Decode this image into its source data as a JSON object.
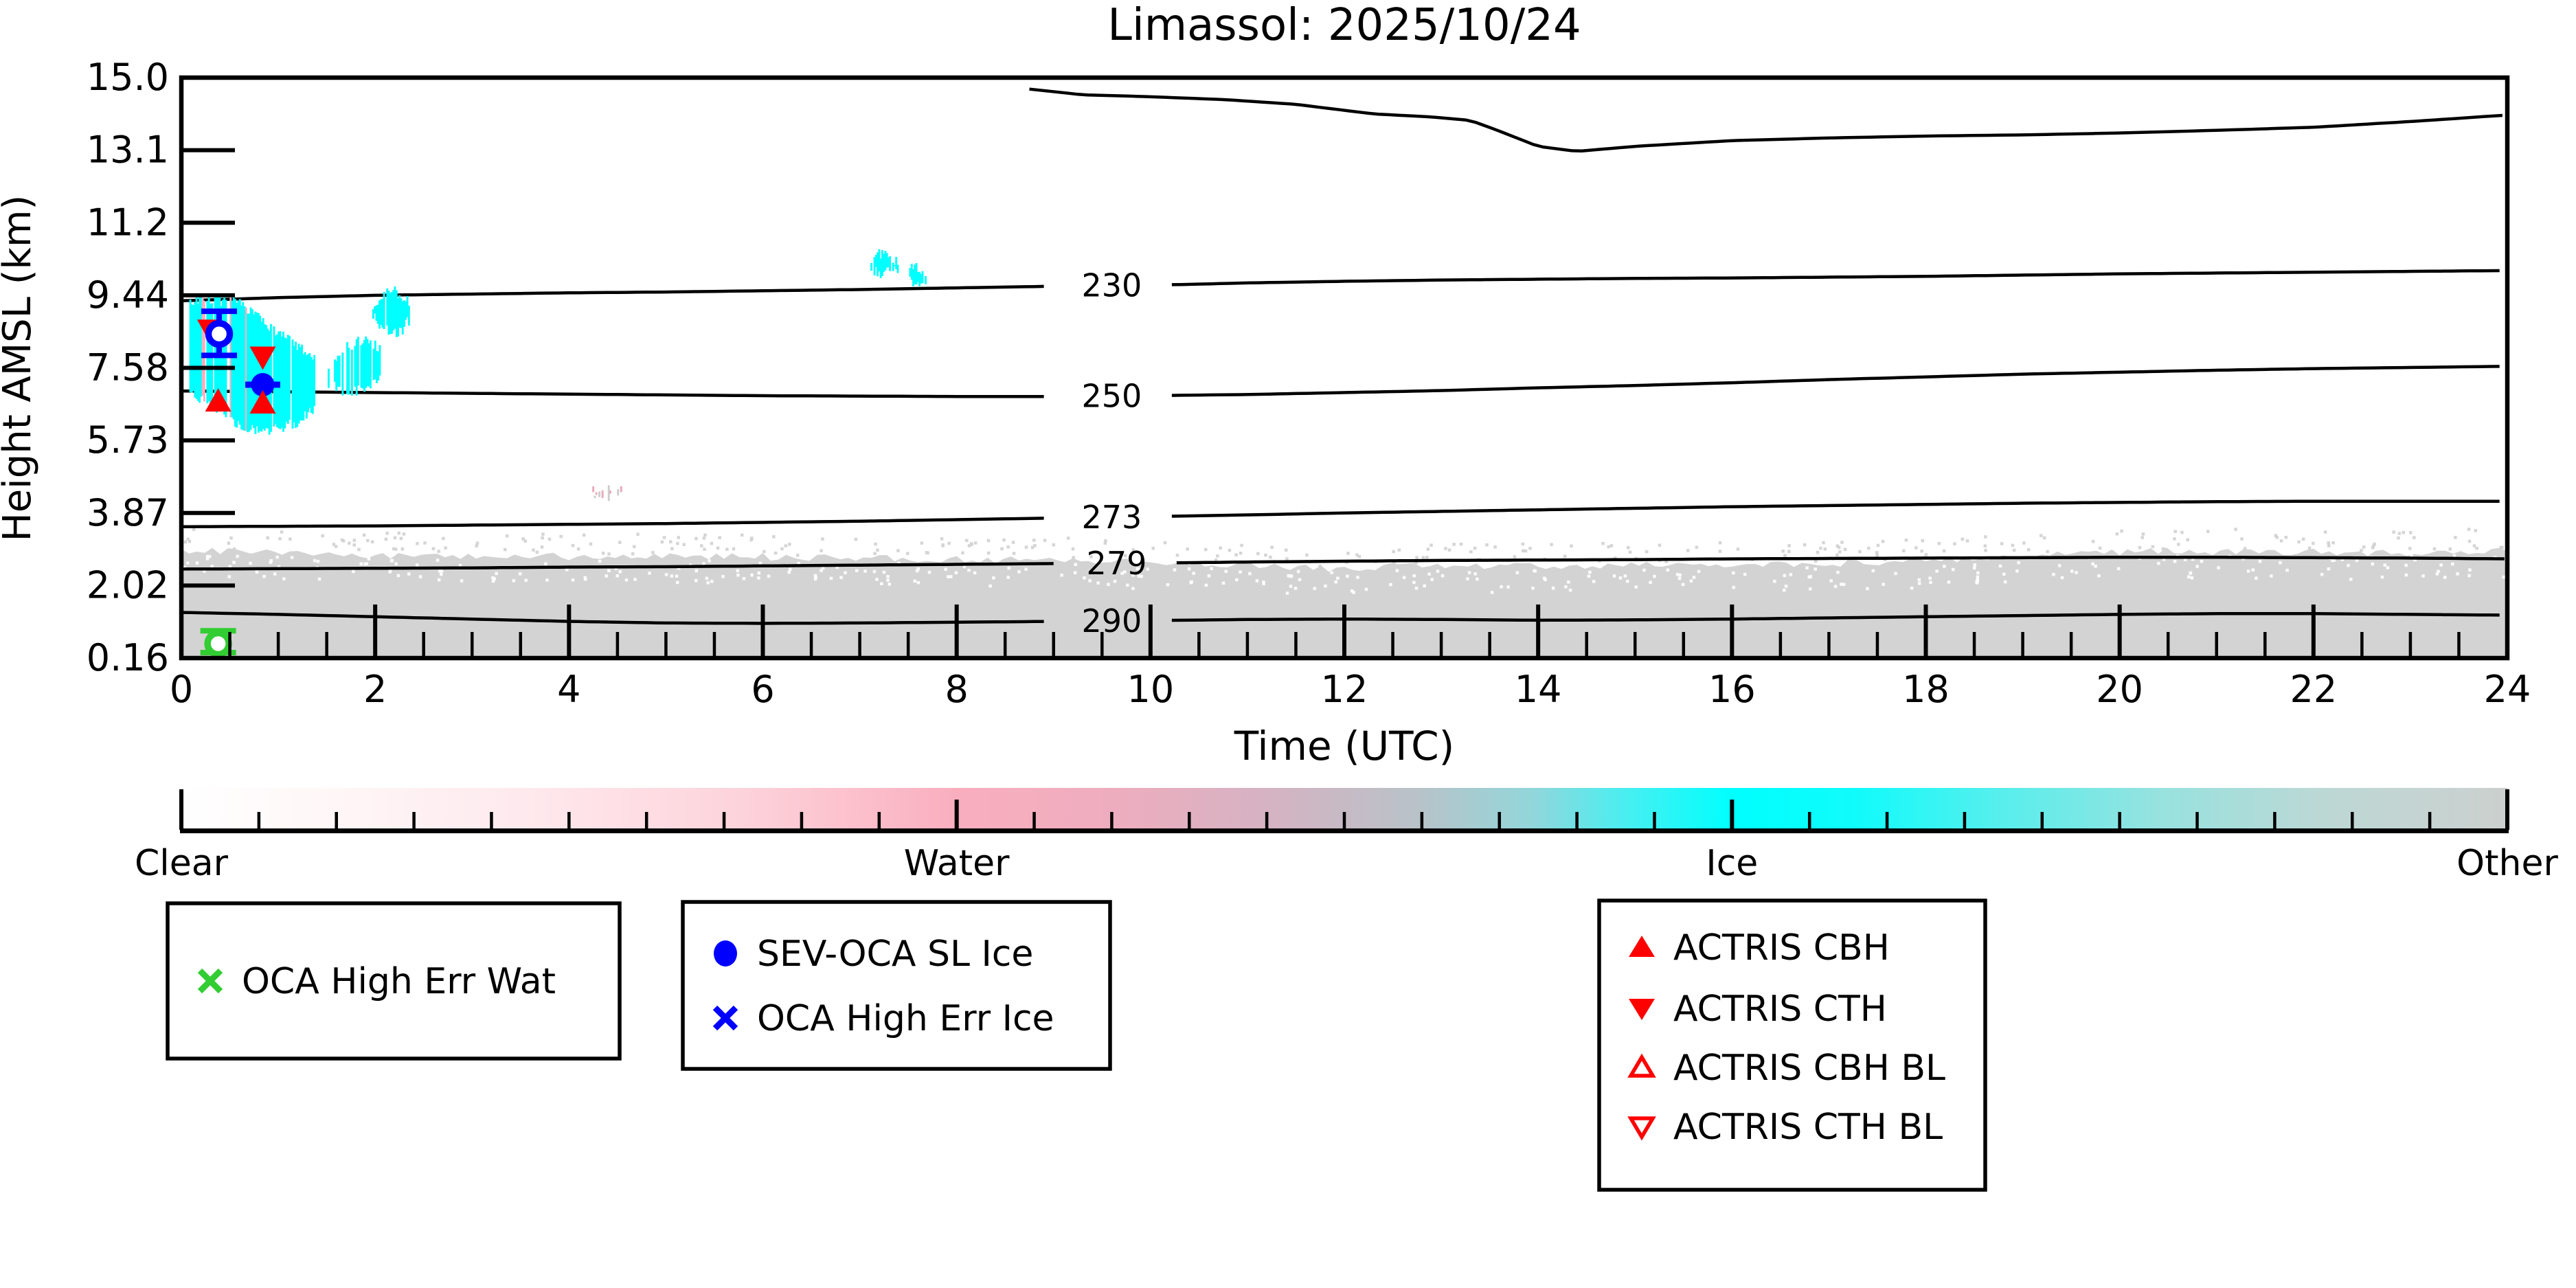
{
  "title": "Limassol: 2025/10/24",
  "chart_data": {
    "type": "heatmap",
    "title": "Limassol: 2025/10/24",
    "xlabel": "Time (UTC)",
    "ylabel": "Height AMSL (km)",
    "x_range": [
      0,
      24
    ],
    "x_tick_labels": [
      "0",
      "2",
      "4",
      "6",
      "8",
      "10",
      "12",
      "14",
      "16",
      "18",
      "20",
      "22",
      "24"
    ],
    "x_minor_tick_step": 0.5,
    "y_tick_labels": [
      "15.0",
      "13.1",
      "11.2",
      "9.44",
      "7.58",
      "5.73",
      "3.87",
      "2.02",
      "0.16"
    ],
    "y_tick_values": [
      15.0,
      13.1,
      11.2,
      9.44,
      7.58,
      5.73,
      3.87,
      2.02,
      0.16
    ],
    "grid": false,
    "isotherms": [
      {
        "label": "",
        "points": [
          [
            8.75,
            14.7
          ],
          [
            9.3,
            14.55
          ],
          [
            10,
            14.5
          ],
          [
            10.8,
            14.42
          ],
          [
            11.5,
            14.3
          ],
          [
            12.3,
            14.05
          ],
          [
            12.9,
            13.97
          ],
          [
            13.3,
            13.88
          ],
          [
            13.6,
            13.6
          ],
          [
            14.0,
            13.2
          ],
          [
            14.4,
            13.07
          ],
          [
            15,
            13.2
          ],
          [
            16,
            13.35
          ],
          [
            17,
            13.42
          ],
          [
            18,
            13.47
          ],
          [
            19,
            13.5
          ],
          [
            20,
            13.55
          ],
          [
            21,
            13.62
          ],
          [
            22,
            13.7
          ],
          [
            23,
            13.85
          ],
          [
            24,
            14.02
          ]
        ]
      },
      {
        "label": "230",
        "label_t": 9.6,
        "points": [
          [
            0,
            9.3
          ],
          [
            1,
            9.38
          ],
          [
            2,
            9.44
          ],
          [
            3,
            9.47
          ],
          [
            4,
            9.5
          ],
          [
            5,
            9.52
          ],
          [
            6,
            9.55
          ],
          [
            7,
            9.58
          ],
          [
            8,
            9.62
          ],
          [
            9,
            9.66
          ],
          [
            10.3,
            9.7
          ],
          [
            11,
            9.74
          ],
          [
            12,
            9.78
          ],
          [
            13,
            9.81
          ],
          [
            14,
            9.83
          ],
          [
            15,
            9.85
          ],
          [
            16,
            9.86
          ],
          [
            17,
            9.88
          ],
          [
            18,
            9.9
          ],
          [
            19,
            9.93
          ],
          [
            20,
            9.96
          ],
          [
            21,
            9.98
          ],
          [
            22,
            10.0
          ],
          [
            23,
            10.02
          ],
          [
            24,
            10.04
          ]
        ]
      },
      {
        "label": "250",
        "label_t": 9.6,
        "points": [
          [
            0,
            6.99
          ],
          [
            1,
            6.97
          ],
          [
            2,
            6.95
          ],
          [
            3,
            6.93
          ],
          [
            4,
            6.91
          ],
          [
            5,
            6.89
          ],
          [
            6,
            6.87
          ],
          [
            7,
            6.86
          ],
          [
            8,
            6.85
          ],
          [
            9,
            6.85
          ],
          [
            10.3,
            6.88
          ],
          [
            11,
            6.9
          ],
          [
            12,
            6.95
          ],
          [
            13,
            7.0
          ],
          [
            14,
            7.07
          ],
          [
            15,
            7.13
          ],
          [
            16,
            7.2
          ],
          [
            17,
            7.28
          ],
          [
            18,
            7.35
          ],
          [
            19,
            7.42
          ],
          [
            20,
            7.47
          ],
          [
            21,
            7.52
          ],
          [
            22,
            7.56
          ],
          [
            23,
            7.59
          ],
          [
            24,
            7.62
          ]
        ]
      },
      {
        "label": "273",
        "label_t": 9.6,
        "points": [
          [
            0,
            3.52
          ],
          [
            1,
            3.53
          ],
          [
            2,
            3.54
          ],
          [
            3,
            3.56
          ],
          [
            4,
            3.58
          ],
          [
            5,
            3.6
          ],
          [
            6,
            3.63
          ],
          [
            7,
            3.66
          ],
          [
            8,
            3.7
          ],
          [
            9,
            3.74
          ],
          [
            10.3,
            3.79
          ],
          [
            11,
            3.82
          ],
          [
            12,
            3.87
          ],
          [
            13,
            3.91
          ],
          [
            14,
            3.95
          ],
          [
            15,
            3.99
          ],
          [
            16,
            4.03
          ],
          [
            17,
            4.06
          ],
          [
            18,
            4.09
          ],
          [
            19,
            4.12
          ],
          [
            20,
            4.14
          ],
          [
            21,
            4.16
          ],
          [
            22,
            4.17
          ],
          [
            23,
            4.17
          ],
          [
            24,
            4.17
          ]
        ]
      },
      {
        "label": "279",
        "label_t": 9.65,
        "points": [
          [
            0,
            2.44
          ],
          [
            1,
            2.45
          ],
          [
            2,
            2.46
          ],
          [
            3,
            2.47
          ],
          [
            4,
            2.49
          ],
          [
            5,
            2.5
          ],
          [
            6,
            2.52
          ],
          [
            7,
            2.54
          ],
          [
            8,
            2.56
          ],
          [
            9,
            2.58
          ],
          [
            10.3,
            2.6
          ],
          [
            11,
            2.62
          ],
          [
            12,
            2.64
          ],
          [
            13,
            2.66
          ],
          [
            14,
            2.67
          ],
          [
            15,
            2.68
          ],
          [
            16,
            2.7
          ],
          [
            17,
            2.71
          ],
          [
            18,
            2.72
          ],
          [
            19,
            2.73
          ],
          [
            20,
            2.74
          ],
          [
            21,
            2.74
          ],
          [
            22,
            2.73
          ],
          [
            23,
            2.72
          ],
          [
            24,
            2.7
          ]
        ]
      },
      {
        "label": "290",
        "label_t": 9.6,
        "points": [
          [
            0,
            1.33
          ],
          [
            1,
            1.28
          ],
          [
            2,
            1.22
          ],
          [
            3,
            1.16
          ],
          [
            4,
            1.1
          ],
          [
            5,
            1.06
          ],
          [
            6,
            1.05
          ],
          [
            7,
            1.06
          ],
          [
            8,
            1.08
          ],
          [
            9,
            1.1
          ],
          [
            10.3,
            1.13
          ],
          [
            11,
            1.15
          ],
          [
            12,
            1.16
          ],
          [
            13,
            1.15
          ],
          [
            14,
            1.13
          ],
          [
            15,
            1.14
          ],
          [
            16,
            1.16
          ],
          [
            17,
            1.19
          ],
          [
            18,
            1.22
          ],
          [
            19,
            1.25
          ],
          [
            20,
            1.28
          ],
          [
            21,
            1.3
          ],
          [
            22,
            1.3
          ],
          [
            23,
            1.28
          ],
          [
            24,
            1.26
          ]
        ]
      }
    ],
    "surface_layer": {
      "color": "#d3d3d3",
      "top_km": [
        [
          0,
          2.9
        ],
        [
          1,
          2.85
        ],
        [
          2,
          2.8
        ],
        [
          3,
          2.77
        ],
        [
          4,
          2.76
        ],
        [
          5,
          2.76
        ],
        [
          6,
          2.75
        ],
        [
          7,
          2.72
        ],
        [
          8,
          2.68
        ],
        [
          9,
          2.66
        ],
        [
          10,
          2.62
        ],
        [
          11,
          2.56
        ],
        [
          11.7,
          2.45
        ],
        [
          12.5,
          2.52
        ],
        [
          13.5,
          2.5
        ],
        [
          14.5,
          2.52
        ],
        [
          15.5,
          2.55
        ],
        [
          16.5,
          2.58
        ],
        [
          17.5,
          2.6
        ],
        [
          18.5,
          2.68
        ],
        [
          19.5,
          2.82
        ],
        [
          20.5,
          2.9
        ],
        [
          21.5,
          2.88
        ],
        [
          22.5,
          2.85
        ],
        [
          23.2,
          2.88
        ],
        [
          24,
          2.9
        ]
      ]
    },
    "clouds": [
      {
        "phase": "ice",
        "color": "#00ffff",
        "seed": 7,
        "skip": 0.1,
        "pink": 0.07,
        "t0": 0.06,
        "t1": 1.38,
        "top": [
          [
            0.06,
            9.25
          ],
          [
            0.2,
            9.35
          ],
          [
            0.5,
            9.3
          ],
          [
            0.7,
            9.1
          ],
          [
            0.9,
            8.6
          ],
          [
            1.1,
            8.3
          ],
          [
            1.38,
            7.9
          ]
        ],
        "bot": [
          [
            0.06,
            7.0
          ],
          [
            0.2,
            6.8
          ],
          [
            0.4,
            6.5
          ],
          [
            0.6,
            6.1
          ],
          [
            0.8,
            6.0
          ],
          [
            1.0,
            6.0
          ],
          [
            1.2,
            6.2
          ],
          [
            1.38,
            6.6
          ]
        ]
      },
      {
        "phase": "ice",
        "color": "#00ffff",
        "seed": 13,
        "skip": 0.16,
        "pink": 0.03,
        "t0": 1.52,
        "t1": 2.08,
        "top": [
          [
            1.52,
            7.6
          ],
          [
            1.7,
            8.1
          ],
          [
            1.9,
            8.35
          ],
          [
            2.08,
            8.0
          ]
        ],
        "bot": [
          [
            1.52,
            7.2
          ],
          [
            1.7,
            6.95
          ],
          [
            1.9,
            7.0
          ],
          [
            2.08,
            7.3
          ]
        ]
      },
      {
        "phase": "ice",
        "color": "#00ffff",
        "seed": 21,
        "skip": 0.12,
        "pink": 0,
        "t0": 1.98,
        "t1": 2.38,
        "top": [
          [
            1.98,
            9.1
          ],
          [
            2.08,
            9.5
          ],
          [
            2.2,
            9.55
          ],
          [
            2.3,
            9.4
          ],
          [
            2.38,
            9.15
          ]
        ],
        "bot": [
          [
            1.98,
            8.9
          ],
          [
            2.08,
            8.6
          ],
          [
            2.2,
            8.45
          ],
          [
            2.3,
            8.6
          ],
          [
            2.38,
            8.95
          ]
        ]
      },
      {
        "phase": "ice",
        "color": "#00ffff",
        "seed": 33,
        "skip": 0.14,
        "pink": 0,
        "t0": 7.12,
        "t1": 7.4,
        "top": [
          [
            7.12,
            10.15
          ],
          [
            7.2,
            10.45
          ],
          [
            7.3,
            10.4
          ],
          [
            7.4,
            10.2
          ]
        ],
        "bot": [
          [
            7.12,
            10.0
          ],
          [
            7.2,
            9.98
          ],
          [
            7.3,
            10.0
          ],
          [
            7.4,
            10.05
          ]
        ]
      },
      {
        "phase": "ice",
        "color": "#00ffff",
        "seed": 41,
        "skip": 0.14,
        "pink": 0,
        "t0": 7.52,
        "t1": 7.68,
        "top": [
          [
            7.52,
            10.1
          ],
          [
            7.6,
            10.08
          ],
          [
            7.68,
            10.0
          ]
        ],
        "bot": [
          [
            7.52,
            9.85
          ],
          [
            7.6,
            9.7
          ],
          [
            7.68,
            9.85
          ]
        ]
      },
      {
        "phase": "water",
        "color": "#eaa9ba",
        "altColor": "#cccccc",
        "seed": 55,
        "skip": 0.25,
        "pink": 0,
        "t0": 4.25,
        "t1": 4.55,
        "top": [
          [
            4.25,
            4.44
          ],
          [
            4.4,
            4.48
          ],
          [
            4.55,
            4.42
          ]
        ],
        "bot": [
          [
            4.25,
            4.34
          ],
          [
            4.4,
            4.3
          ],
          [
            4.55,
            4.36
          ]
        ]
      }
    ],
    "markers": [
      {
        "name": "red-down-triangle-hidden",
        "shape": "tri-down",
        "fill": true,
        "color": "#ff0000",
        "t": 0.27,
        "km": 8.62,
        "scale": 0.8
      },
      {
        "name": "blue-open-circle-errorbar",
        "shape": "open-circle",
        "color": "#0000ff",
        "t": 0.39,
        "km": 8.45,
        "yerr_km": [
          7.9,
          9.03
        ]
      },
      {
        "name": "red-down-triangle",
        "shape": "tri-down",
        "fill": true,
        "color": "#ff0000",
        "t": 0.84,
        "km": 7.88
      },
      {
        "name": "blue-filled-circle-errorbar",
        "shape": "filled-circle",
        "color": "#0000ff",
        "t": 0.84,
        "km": 7.15,
        "xerr_h": 0.18
      },
      {
        "name": "red-up-triangle-1",
        "shape": "tri-up",
        "fill": true,
        "color": "#ff0000",
        "t": 0.38,
        "km": 6.71
      },
      {
        "name": "red-up-triangle-2",
        "shape": "tri-up",
        "fill": true,
        "color": "#ff0000",
        "t": 0.84,
        "km": 6.66
      },
      {
        "name": "green-open-circle-errorbar",
        "shape": "open-circle",
        "color": "#32cd32",
        "t": 0.38,
        "km": 0.53,
        "yerr_km": [
          0.3,
          0.86
        ]
      }
    ],
    "colorbar": {
      "categories": [
        "Clear",
        "Water",
        "Ice",
        "Other"
      ],
      "minor_tick_step": 0.1,
      "stops": [
        {
          "at": 0.0,
          "color": "#ffffff"
        },
        {
          "at": 0.06,
          "color": "#fff7f8"
        },
        {
          "at": 0.15,
          "color": "#fee9ed"
        },
        {
          "at": 0.24,
          "color": "#fdd3db"
        },
        {
          "at": 0.3,
          "color": "#fbbcc9"
        },
        {
          "at": 0.3333,
          "color": "#f9aebe"
        },
        {
          "at": 0.4,
          "color": "#eeadbf"
        },
        {
          "at": 0.47,
          "color": "#d4b3c2"
        },
        {
          "at": 0.53,
          "color": "#b9c2c8"
        },
        {
          "at": 0.58,
          "color": "#93d6da"
        },
        {
          "at": 0.62,
          "color": "#4aeef0"
        },
        {
          "at": 0.6667,
          "color": "#00ffff"
        },
        {
          "at": 0.72,
          "color": "#10fbfb"
        },
        {
          "at": 0.78,
          "color": "#55efed"
        },
        {
          "at": 0.85,
          "color": "#97e2df"
        },
        {
          "at": 0.92,
          "color": "#bcd8d5"
        },
        {
          "at": 1.0,
          "color": "#ccd0ce"
        }
      ]
    },
    "legends": [
      {
        "name": "legend-oca-water",
        "entries": [
          {
            "marker": "x",
            "color": "#32cd32",
            "label": "OCA High Err Wat"
          }
        ]
      },
      {
        "name": "legend-oca-ice",
        "entries": [
          {
            "marker": "dot",
            "color": "#0000ff",
            "label": "SEV-OCA SL Ice"
          },
          {
            "marker": "x",
            "color": "#0000ff",
            "label": "OCA High Err Ice"
          }
        ]
      },
      {
        "name": "legend-actris",
        "entries": [
          {
            "marker": "tri-up-filled",
            "color": "#ff0000",
            "label": "ACTRIS CBH"
          },
          {
            "marker": "tri-down-filled",
            "color": "#ff0000",
            "label": "ACTRIS CTH"
          },
          {
            "marker": "tri-up-open",
            "color": "#ff0000",
            "label": "ACTRIS CBH BL"
          },
          {
            "marker": "tri-down-open",
            "color": "#ff0000",
            "label": "ACTRIS CTH BL"
          }
        ]
      }
    ]
  }
}
